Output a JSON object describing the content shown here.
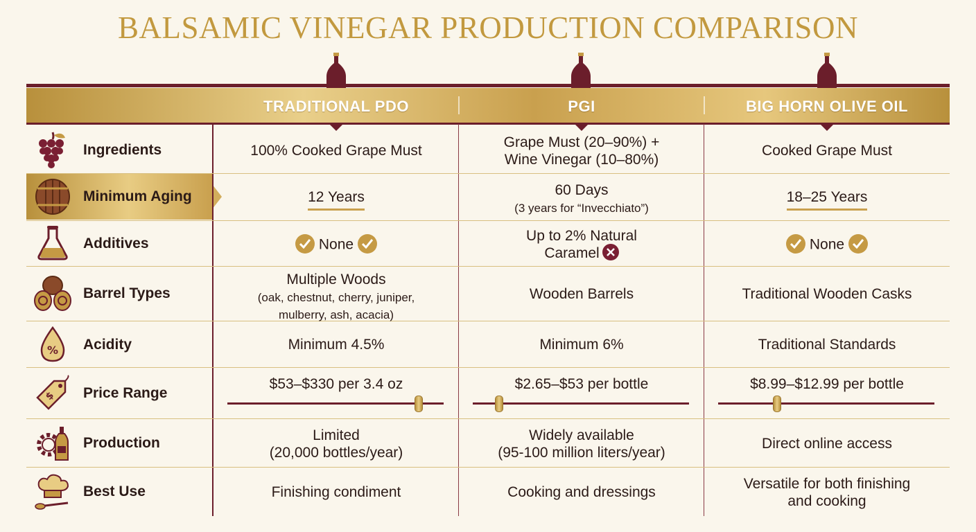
{
  "title": "BALSAMIC VINEGAR PRODUCTION COMPARISON",
  "colors": {
    "burgundy": "#6b1e2b",
    "gold": "#c2993f",
    "background": "#faf6ec"
  },
  "columns": [
    "TRADITIONAL PDO",
    "PGI",
    "BIG HORN OLIVE OIL"
  ],
  "rows": [
    {
      "label": "Ingredients",
      "icon": "grapes-icon",
      "cells": [
        [
          "100% Cooked Grape Must"
        ],
        [
          "Grape Must (20–90%) +",
          "Wine Vinegar (10–80%)"
        ],
        [
          "Cooked Grape Must"
        ]
      ]
    },
    {
      "label": "Minimum Aging",
      "icon": "barrel-icon",
      "highlighted": true,
      "cells": [
        [
          "12 Years"
        ],
        [
          "60 Days",
          "(3 years for “Invecchiato”)"
        ],
        [
          "18–25 Years"
        ]
      ]
    },
    {
      "label": "Additives",
      "icon": "flask-icon",
      "cells": [
        [
          "None"
        ],
        [
          "Up to 2% Natural",
          "Caramel"
        ],
        [
          "None"
        ]
      ],
      "status": [
        "check",
        "cross",
        "check"
      ]
    },
    {
      "label": "Barrel Types",
      "icon": "barrels-icon",
      "cells": [
        [
          "Multiple Woods",
          "(oak, chestnut, cherry, juniper,",
          "mulberry, ash, acacia)"
        ],
        [
          "Wooden Barrels"
        ],
        [
          "Traditional Wooden Casks"
        ]
      ]
    },
    {
      "label": "Acidity",
      "icon": "percent-drop-icon",
      "cells": [
        [
          "Minimum 4.5%"
        ],
        [
          "Minimum 6%"
        ],
        [
          "Traditional Standards"
        ]
      ]
    },
    {
      "label": "Price Range",
      "icon": "price-tag-icon",
      "cells": [
        [
          "$53–$330 per 3.4 oz"
        ],
        [
          "$2.65–$53 per bottle"
        ],
        [
          "$8.99–$12.99 per bottle"
        ]
      ],
      "price_level": [
        0.88,
        0.12,
        0.27
      ]
    },
    {
      "label": "Production",
      "icon": "gear-bottle-icon",
      "cells": [
        [
          "Limited",
          "(20,000 bottles/year)"
        ],
        [
          "Widely available",
          "(95-100 million liters/year)"
        ],
        [
          "Direct online access"
        ]
      ]
    },
    {
      "label": "Best Use",
      "icon": "chef-spoon-icon",
      "cells": [
        [
          "Finishing condiment"
        ],
        [
          "Cooking and dressings"
        ],
        [
          "Versatile for both finishing",
          "and cooking"
        ]
      ]
    }
  ]
}
